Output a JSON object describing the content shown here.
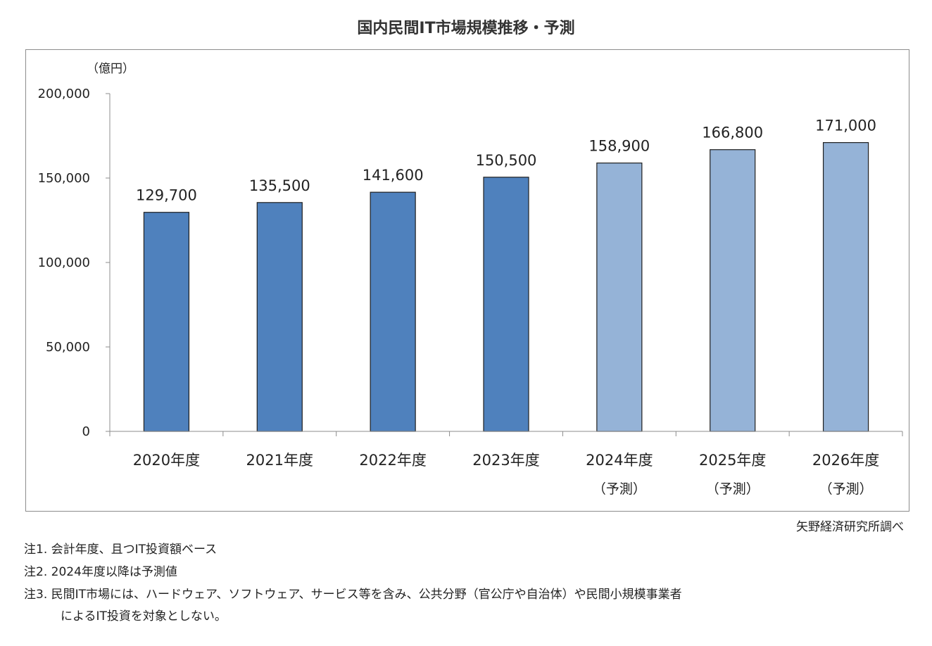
{
  "title": "国内民間IT市場規模推移・予測",
  "source": "矢野経済研究所調べ",
  "notes": {
    "n1": "注1.  会計年度、且つIT投資額ベース",
    "n2": "注2.  2024年度以降は予測値",
    "n3": "注3.  民間IT市場には、ハードウェア、ソフトウェア、サービス等を含み、公共分野（官公庁や自治体）や民間小規模事業者",
    "n3b": "によるIT投資を対象としない。"
  },
  "chart_data": {
    "type": "bar",
    "unit_label": "（億円）",
    "categories": [
      "2020年度",
      "2021年度",
      "2022年度",
      "2023年度",
      "2024年度",
      "2025年度",
      "2026年度"
    ],
    "category_sublabels": [
      "",
      "",
      "",
      "",
      "（予測）",
      "（予測）",
      "（予測）"
    ],
    "values": [
      129700,
      135500,
      141600,
      150500,
      158900,
      166800,
      171000
    ],
    "value_labels": [
      "129,700",
      "135,500",
      "141,600",
      "150,500",
      "158,900",
      "166,800",
      "171,000"
    ],
    "forecast": [
      false,
      false,
      false,
      false,
      true,
      true,
      true
    ],
    "ylim": [
      0,
      200000
    ],
    "yticks": [
      0,
      50000,
      100000,
      150000,
      200000
    ],
    "ytick_labels": [
      "0",
      "50,000",
      "100,000",
      "150,000",
      "200,000"
    ],
    "colors": {
      "actual": "#4f81bd",
      "forecast_2024": "#95b3d7",
      "forecast": "#95b3d7",
      "outline": "#1f1f1f",
      "axis": "#8c8c8c"
    },
    "grid": false,
    "legend": "none"
  }
}
